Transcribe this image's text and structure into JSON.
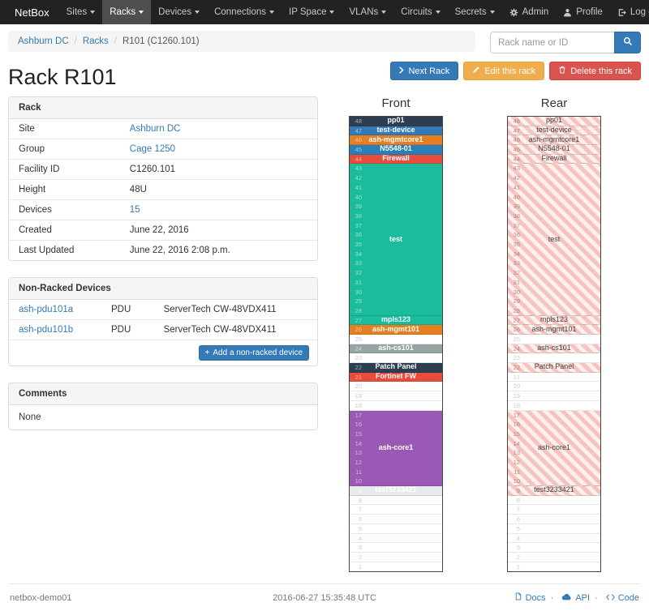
{
  "navbar": {
    "brand": "NetBox",
    "items": [
      {
        "label": "Sites",
        "active": false
      },
      {
        "label": "Racks",
        "active": true
      },
      {
        "label": "Devices",
        "active": false
      },
      {
        "label": "Connections",
        "active": false
      },
      {
        "label": "IP Space",
        "active": false
      },
      {
        "label": "VLANs",
        "active": false
      },
      {
        "label": "Circuits",
        "active": false
      },
      {
        "label": "Secrets",
        "active": false
      }
    ],
    "right_items": [
      {
        "label": "Admin",
        "icon": "gear-icon"
      },
      {
        "label": "Profile",
        "icon": "user-icon"
      },
      {
        "label": "Log out",
        "icon": "logout-icon"
      }
    ]
  },
  "breadcrumb": {
    "items": [
      {
        "label": "Ashburn DC",
        "link": true
      },
      {
        "label": "Racks",
        "link": true
      },
      {
        "label": "R101 (C1260.101)",
        "link": false
      }
    ]
  },
  "search": {
    "placeholder": "Rack name or ID"
  },
  "page": {
    "title": "Rack R101"
  },
  "actions": {
    "next_label": "Next Rack",
    "edit_label": "Edit this rack",
    "delete_label": "Delete this rack"
  },
  "rack_panel": {
    "title": "Rack",
    "rows": [
      {
        "label": "Site",
        "value": "Ashburn DC",
        "link": true
      },
      {
        "label": "Group",
        "value": "Cage 1250",
        "link": true
      },
      {
        "label": "Facility ID",
        "value": "C1260.101",
        "link": false
      },
      {
        "label": "Height",
        "value": "48U",
        "link": false
      },
      {
        "label": "Devices",
        "value": "15",
        "link": true
      },
      {
        "label": "Created",
        "value": "June 22, 2016",
        "link": false
      },
      {
        "label": "Last Updated",
        "value": "June 22, 2016 2:08 p.m.",
        "link": false
      }
    ]
  },
  "nonracked_panel": {
    "title": "Non-Racked Devices",
    "devices": [
      {
        "name": "ash-pdu101a",
        "role": "PDU",
        "model": "ServerTech CW-48VDX411"
      },
      {
        "name": "ash-pdu101b",
        "role": "PDU",
        "model": "ServerTech CW-48VDX411"
      }
    ],
    "add_label": "Add a non-racked device"
  },
  "comments_panel": {
    "title": "Comments",
    "body": "None"
  },
  "elevations": {
    "front_title": "Front",
    "rear_title": "Rear",
    "top_unit": 48,
    "front": [
      {
        "label": "pp01",
        "units": 1,
        "bg": "#2c3e50"
      },
      {
        "label": "test-device",
        "units": 1,
        "bg": "#337ab7"
      },
      {
        "label": "ash-mgmtcore1",
        "units": 1,
        "bg": "#e67e22"
      },
      {
        "label": "N5548-01",
        "units": 1,
        "bg": "#2980b9"
      },
      {
        "label": "Firewall",
        "units": 1,
        "bg": "#e74c3c"
      },
      {
        "label": "test",
        "units": 16,
        "bg": "#1abc9c"
      },
      {
        "label": "mpls123",
        "units": 1,
        "bg": "#1abc9c"
      },
      {
        "label": "ash-mgmt101",
        "units": 1,
        "bg": "#e67e22"
      },
      {
        "empty": true,
        "units": 1
      },
      {
        "label": "ash-cs101",
        "units": 1,
        "bg": "#95a5a6"
      },
      {
        "empty": true,
        "units": 1
      },
      {
        "label": "Patch Panel",
        "units": 1,
        "bg": "#2c3e50"
      },
      {
        "label": "Fortinet FW",
        "units": 1,
        "bg": "#e74c3c"
      },
      {
        "empty": true,
        "units": 3
      },
      {
        "label": "ash-core1",
        "units": 8,
        "bg": "#9b59b6"
      },
      {
        "label": "test3233421",
        "units": 1,
        "bg": "#e8ebee",
        "fg": "#ffffff"
      },
      {
        "empty": true,
        "units": 8
      }
    ],
    "rear": [
      {
        "label": "pp01",
        "units": 1,
        "hatched": true
      },
      {
        "label": "test-device",
        "units": 1,
        "hatched": true
      },
      {
        "label": "ash-mgmtcore1",
        "units": 1,
        "hatched": true
      },
      {
        "label": "N5548-01",
        "units": 1,
        "hatched": true
      },
      {
        "label": "Firewall",
        "units": 1,
        "hatched": true
      },
      {
        "label": "test",
        "units": 16,
        "hatched": true
      },
      {
        "label": "mpls123",
        "units": 1,
        "hatched": true
      },
      {
        "label": "ash-mgmt101",
        "units": 1,
        "hatched": true
      },
      {
        "empty": true,
        "units": 1
      },
      {
        "label": "ash-cs101",
        "units": 1,
        "hatched": true
      },
      {
        "empty": true,
        "units": 1
      },
      {
        "label": "Patch Panel",
        "units": 1,
        "hatched": true
      },
      {
        "empty": true,
        "units": 1
      },
      {
        "empty": true,
        "units": 3
      },
      {
        "label": "ash-core1",
        "units": 8,
        "hatched": true
      },
      {
        "label": "test3233421",
        "units": 1,
        "hatched": true
      },
      {
        "empty": true,
        "units": 8
      }
    ]
  },
  "icons": {
    "plus": "+"
  },
  "footer": {
    "hostname": "netbox-demo01",
    "timestamp": "2016-06-27 15:35:48 UTC",
    "links": [
      {
        "label": "Docs",
        "icon": "docs-icon"
      },
      {
        "label": "API",
        "icon": "api-icon"
      },
      {
        "label": "Code",
        "icon": "code-icon"
      }
    ]
  }
}
